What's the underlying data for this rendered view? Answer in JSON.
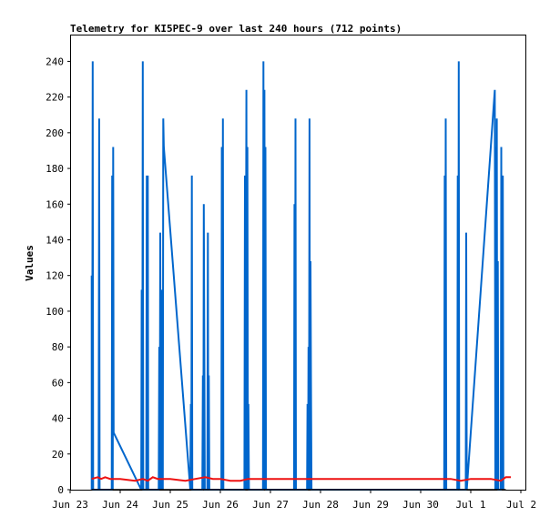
{
  "chart_data": {
    "type": "line",
    "title": "Telemetry for KI5PEC-9 over last 240 hours (712 points)",
    "ylabel": "Values",
    "xlabel": "",
    "ylim": [
      0,
      255
    ],
    "y_ticks": [
      0,
      20,
      40,
      60,
      80,
      100,
      120,
      140,
      160,
      180,
      200,
      220,
      240
    ],
    "x_ticks": [
      "Jun 23",
      "Jun 24",
      "Jun 25",
      "Jun 26",
      "Jun 27",
      "Jun 28",
      "Jun 29",
      "Jun 30",
      "Jul 1",
      "Jul 2"
    ],
    "xlim_days": [
      0,
      9
    ],
    "grid": false,
    "legend": "none",
    "colors": {
      "series1": "#0066cc",
      "series2": "#ee1111",
      "series3": "#000000"
    },
    "series": [
      {
        "color": "#0066cc",
        "points": [
          [
            0.43,
            0
          ],
          [
            0.43,
            120
          ],
          [
            0.44,
            0
          ],
          [
            0.45,
            240
          ],
          [
            0.46,
            0
          ],
          [
            0.57,
            0
          ],
          [
            0.58,
            208
          ],
          [
            0.59,
            0
          ],
          [
            0.83,
            0
          ],
          [
            0.84,
            176
          ],
          [
            0.85,
            0
          ],
          [
            0.86,
            192
          ],
          [
            0.87,
            32
          ],
          [
            1.42,
            0
          ],
          [
            1.43,
            112
          ],
          [
            1.44,
            0
          ],
          [
            1.45,
            240
          ],
          [
            1.46,
            0
          ],
          [
            1.52,
            0
          ],
          [
            1.53,
            176
          ],
          [
            1.54,
            0
          ],
          [
            1.55,
            176
          ],
          [
            1.56,
            0
          ],
          [
            1.77,
            0
          ],
          [
            1.78,
            80
          ],
          [
            1.79,
            0
          ],
          [
            1.8,
            144
          ],
          [
            1.81,
            0
          ],
          [
            1.82,
            112
          ],
          [
            1.83,
            0
          ],
          [
            1.84,
            56
          ],
          [
            1.85,
            0
          ],
          [
            1.86,
            208
          ],
          [
            1.87,
            192
          ],
          [
            2.4,
            0
          ],
          [
            2.41,
            48
          ],
          [
            2.42,
            0
          ],
          [
            2.43,
            176
          ],
          [
            2.44,
            0
          ],
          [
            2.64,
            0
          ],
          [
            2.65,
            64
          ],
          [
            2.66,
            0
          ],
          [
            2.67,
            160
          ],
          [
            2.68,
            80
          ],
          [
            2.69,
            0
          ],
          [
            2.74,
            0
          ],
          [
            2.75,
            144
          ],
          [
            2.76,
            0
          ],
          [
            2.77,
            64
          ],
          [
            2.78,
            0
          ],
          [
            3.02,
            0
          ],
          [
            3.03,
            192
          ],
          [
            3.04,
            0
          ],
          [
            3.05,
            208
          ],
          [
            3.06,
            0
          ],
          [
            3.48,
            0
          ],
          [
            3.49,
            176
          ],
          [
            3.5,
            0
          ],
          [
            3.52,
            224
          ],
          [
            3.53,
            0
          ],
          [
            3.54,
            192
          ],
          [
            3.55,
            0
          ],
          [
            3.56,
            48
          ],
          [
            3.57,
            0
          ],
          [
            3.85,
            0
          ],
          [
            3.86,
            240
          ],
          [
            3.87,
            0
          ],
          [
            3.88,
            224
          ],
          [
            3.89,
            0
          ],
          [
            3.9,
            192
          ],
          [
            3.91,
            0
          ],
          [
            4.47,
            0
          ],
          [
            4.48,
            160
          ],
          [
            4.49,
            0
          ],
          [
            4.5,
            208
          ],
          [
            4.51,
            0
          ],
          [
            4.73,
            0
          ],
          [
            4.74,
            48
          ],
          [
            4.75,
            0
          ],
          [
            4.76,
            80
          ],
          [
            4.77,
            0
          ],
          [
            4.78,
            208
          ],
          [
            4.79,
            0
          ],
          [
            4.8,
            128
          ],
          [
            4.81,
            64
          ],
          [
            4.82,
            0
          ],
          [
            7.47,
            0
          ],
          [
            7.48,
            176
          ],
          [
            7.49,
            0
          ],
          [
            7.5,
            208
          ],
          [
            7.51,
            0
          ],
          [
            7.73,
            0
          ],
          [
            7.74,
            176
          ],
          [
            7.75,
            0
          ],
          [
            7.76,
            240
          ],
          [
            7.77,
            0
          ],
          [
            7.9,
            0
          ],
          [
            7.91,
            144
          ],
          [
            7.92,
            0
          ],
          [
            8.48,
            224
          ],
          [
            8.49,
            0
          ],
          [
            8.5,
            192
          ],
          [
            8.51,
            0
          ],
          [
            8.52,
            208
          ],
          [
            8.53,
            0
          ],
          [
            8.54,
            128
          ],
          [
            8.55,
            0
          ],
          [
            8.6,
            0
          ],
          [
            8.61,
            192
          ],
          [
            8.62,
            0
          ],
          [
            8.64,
            176
          ],
          [
            8.65,
            0
          ]
        ]
      },
      {
        "color": "#ee1111",
        "points": [
          [
            0.43,
            6
          ],
          [
            0.55,
            7
          ],
          [
            0.62,
            6
          ],
          [
            0.7,
            7
          ],
          [
            0.8,
            6
          ],
          [
            1.0,
            6
          ],
          [
            1.3,
            5
          ],
          [
            1.45,
            6
          ],
          [
            1.55,
            5
          ],
          [
            1.65,
            7
          ],
          [
            1.75,
            6
          ],
          [
            2.0,
            6
          ],
          [
            2.3,
            5
          ],
          [
            2.5,
            6
          ],
          [
            2.7,
            7
          ],
          [
            2.85,
            6
          ],
          [
            3.0,
            6
          ],
          [
            3.2,
            5
          ],
          [
            3.4,
            5
          ],
          [
            3.55,
            6
          ],
          [
            4.0,
            6
          ],
          [
            5.0,
            6
          ],
          [
            6.0,
            6
          ],
          [
            7.0,
            6
          ],
          [
            7.6,
            6
          ],
          [
            7.8,
            5
          ],
          [
            8.0,
            6
          ],
          [
            8.4,
            6
          ],
          [
            8.6,
            5
          ],
          [
            8.7,
            7
          ],
          [
            8.8,
            7
          ]
        ]
      },
      {
        "color": "#000000",
        "points": [
          [
            0.43,
            0
          ],
          [
            8.7,
            0
          ]
        ]
      }
    ]
  }
}
